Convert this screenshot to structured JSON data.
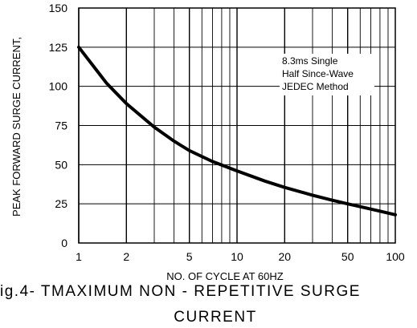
{
  "chart_data": {
    "type": "line",
    "title": "",
    "xlabel": "NO. OF CYCLE AT 60HZ",
    "ylabel": "PEAK FORWARD SURGE CURRENT,",
    "x_scale": "log",
    "xlim": [
      1,
      100
    ],
    "ylim": [
      0,
      150
    ],
    "x_ticks": [
      1,
      2,
      5,
      10,
      20,
      50,
      100
    ],
    "x_tick_labels": [
      "1",
      "2",
      "5",
      "10",
      "20",
      "50",
      "100"
    ],
    "y_ticks": [
      0,
      25,
      50,
      75,
      100,
      125,
      150
    ],
    "y_tick_labels": [
      "0",
      "25",
      "50",
      "75",
      "100",
      "125",
      "150"
    ],
    "grid": true,
    "series": [
      {
        "x": [
          1,
          1.5,
          2,
          3,
          4,
          5,
          7,
          10,
          15,
          20,
          30,
          40,
          50,
          60,
          80,
          100
        ],
        "values": [
          125,
          102,
          89,
          74,
          65,
          59,
          52,
          46,
          39.5,
          35.5,
          30.5,
          27.3,
          25,
          23.2,
          20.3,
          18
        ]
      }
    ],
    "annotation": [
      "8.3ms Single",
      "Half Since-Wave",
      "JEDEC Method"
    ]
  },
  "caption": {
    "line1": "ig.4- TMAXIMUM NON - REPETITIVE SURGE",
    "line2": "CURRENT"
  }
}
